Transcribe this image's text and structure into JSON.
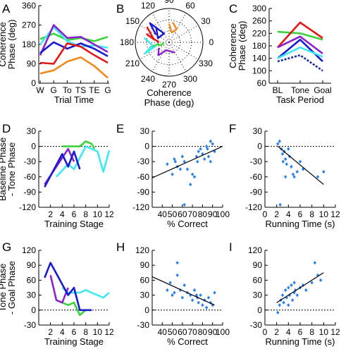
{
  "colors": {
    "green": "#3ad43a",
    "cyan": "#40e8f0",
    "red": "#e01818",
    "orange": "#f08a1e",
    "purple": "#8a22cc",
    "blue": "#1a1ad0",
    "navy": "#1a2a9a",
    "scatter": "#2a80e8"
  },
  "chart_data": [
    {
      "panel": "A",
      "type": "line",
      "ylabel": [
        "Coherence",
        "Phase (deg)"
      ],
      "xlabel": "Trial Time",
      "categories": [
        "W",
        "G",
        "To",
        "TS",
        "TE",
        "G"
      ],
      "ylim": [
        0,
        360
      ],
      "yticks": [
        0,
        90,
        180,
        270,
        360
      ],
      "series": [
        {
          "color": "green",
          "values": [
            205,
            230,
            200,
            210,
            195,
            215
          ]
        },
        {
          "color": "cyan",
          "values": [
            180,
            260,
            195,
            170,
            175,
            165
          ]
        },
        {
          "color": "purple",
          "values": [
            130,
            270,
            210,
            215,
            180,
            145
          ]
        },
        {
          "color": "blue",
          "values": [
            140,
            190,
            160,
            185,
            160,
            125
          ]
        },
        {
          "color": "red",
          "values": [
            95,
            90,
            185,
            170,
            130,
            95
          ]
        },
        {
          "color": "orange",
          "values": [
            45,
            60,
            100,
            120,
            80,
            25
          ]
        }
      ]
    },
    {
      "panel": "B",
      "type": "polar",
      "xlabel": [
        "Coherence",
        "Phase (deg)"
      ],
      "angle_labels": [
        "0",
        "30",
        "60",
        "90",
        "120",
        "150",
        "180",
        "210",
        "240",
        "270",
        "300",
        "330"
      ],
      "series": [
        {
          "color": "green",
          "points": [
            [
              195,
              0.6
            ],
            [
              190,
              0.35
            ],
            [
              200,
              0.25
            ],
            [
              185,
              0.15
            ]
          ]
        },
        {
          "color": "cyan",
          "points": [
            [
              170,
              0.75
            ],
            [
              190,
              0.5
            ],
            [
              205,
              0.8
            ],
            [
              195,
              0.4
            ]
          ]
        },
        {
          "color": "red",
          "points": [
            [
              145,
              0.8
            ],
            [
              170,
              0.45
            ],
            [
              160,
              0.7
            ],
            [
              180,
              0.3
            ]
          ]
        },
        {
          "color": "orange",
          "points": [
            [
              80,
              0.6
            ],
            [
              60,
              0.45
            ],
            [
              75,
              0.3
            ],
            [
              90,
              0.55
            ]
          ]
        },
        {
          "color": "purple",
          "points": [
            [
              210,
              0.35
            ],
            [
              230,
              0.5
            ],
            [
              250,
              0.25
            ],
            [
              300,
              0.35
            ]
          ]
        },
        {
          "color": "blue",
          "points": [
            [
              130,
              0.6
            ],
            [
              160,
              0.35
            ],
            [
              120,
              0.3
            ],
            [
              135,
              0.8
            ],
            [
              150,
              0.45
            ]
          ]
        }
      ]
    },
    {
      "panel": "C",
      "type": "line",
      "ylabel": [
        "Coherence",
        "Phase (deg)"
      ],
      "xlabel": "Task Period",
      "categories": [
        "BL",
        "Tone",
        "Goal"
      ],
      "ylim": [
        60,
        300
      ],
      "yticks": [
        60,
        100,
        140,
        180,
        220,
        260,
        300
      ],
      "series": [
        {
          "color": "green",
          "values": [
            225,
            220,
            200
          ]
        },
        {
          "color": "red",
          "values": [
            175,
            255,
            205
          ]
        },
        {
          "color": "purple",
          "values": [
            175,
            210,
            155
          ]
        },
        {
          "color": "blue",
          "values": [
            140,
            200,
            130
          ]
        },
        {
          "color": "cyan",
          "values": [
            140,
            175,
            145
          ]
        },
        {
          "color": "navy",
          "dashed": true,
          "values": [
            130,
            150,
            100
          ]
        }
      ]
    },
    {
      "panel": "D",
      "type": "line",
      "ylabel": [
        "Baseline Phase",
        "- Tone Phase"
      ],
      "xlabel": "Training Stage",
      "xlim": [
        0,
        12
      ],
      "xticks": [
        2,
        4,
        6,
        8,
        10,
        12
      ],
      "ylim": [
        -120,
        30
      ],
      "yticks": [
        -120,
        -90,
        -60,
        -30,
        0,
        30
      ],
      "series": [
        {
          "color": "green",
          "points": [
            [
              4,
              0
            ],
            [
              7,
              0
            ],
            [
              8,
              10
            ],
            [
              9,
              5
            ],
            [
              9.5,
              -5
            ]
          ]
        },
        {
          "color": "cyan",
          "points": [
            [
              3,
              -60
            ],
            [
              5,
              -35
            ],
            [
              6,
              -45
            ],
            [
              8,
              0
            ],
            [
              10,
              -10
            ],
            [
              11,
              -50
            ],
            [
              12,
              -8
            ]
          ]
        },
        {
          "color": "purple",
          "points": [
            [
              1,
              -75
            ],
            [
              3,
              -40
            ],
            [
              5,
              -5
            ],
            [
              6,
              -30
            ]
          ]
        },
        {
          "color": "blue",
          "points": [
            [
              1,
              -80
            ],
            [
              4,
              -15
            ],
            [
              5,
              -40
            ],
            [
              6,
              -10
            ],
            [
              7,
              -45
            ]
          ]
        }
      ]
    },
    {
      "panel": "E",
      "type": "scatter",
      "xlabel": "% Correct",
      "xlim": [
        30,
        100
      ],
      "xticks": [
        40,
        50,
        60,
        70,
        80,
        90,
        100
      ],
      "ylim": [
        -120,
        30
      ],
      "yticks": [
        -120,
        -90,
        -60,
        -30,
        0,
        30
      ],
      "trend": [
        [
          30,
          -62
        ],
        [
          100,
          0
        ]
      ],
      "points": [
        [
          45,
          -35
        ],
        [
          50,
          -55
        ],
        [
          52,
          -25
        ],
        [
          53,
          -30
        ],
        [
          55,
          -40
        ],
        [
          58,
          -45
        ],
        [
          60,
          -20
        ],
        [
          62,
          -30
        ],
        [
          65,
          -45
        ],
        [
          68,
          -75
        ],
        [
          70,
          -55
        ],
        [
          72,
          -60
        ],
        [
          74,
          -20
        ],
        [
          75,
          -30
        ],
        [
          76,
          -10
        ],
        [
          78,
          -5
        ],
        [
          80,
          -15
        ],
        [
          82,
          -25
        ],
        [
          84,
          0
        ],
        [
          85,
          -5
        ],
        [
          86,
          -20
        ],
        [
          88,
          10
        ],
        [
          88,
          -30
        ],
        [
          90,
          5
        ],
        [
          92,
          -10
        ],
        [
          62,
          -115
        ]
      ]
    },
    {
      "panel": "F",
      "type": "scatter",
      "xlabel": "Running Time (s)",
      "xlim": [
        0,
        12
      ],
      "xticks": [
        0,
        2,
        4,
        6,
        8,
        10,
        12
      ],
      "ylim": [
        -120,
        30
      ],
      "yticks": [
        -120,
        -90,
        -60,
        -30,
        0,
        30
      ],
      "trend": [
        [
          2.2,
          0
        ],
        [
          10,
          -75
        ]
      ],
      "points": [
        [
          2.2,
          5
        ],
        [
          2.5,
          10
        ],
        [
          2.8,
          -5
        ],
        [
          3,
          -15
        ],
        [
          3.1,
          -30
        ],
        [
          3.3,
          -10
        ],
        [
          3.5,
          -25
        ],
        [
          3.7,
          -35
        ],
        [
          4,
          -5
        ],
        [
          4.2,
          -20
        ],
        [
          4.5,
          -40
        ],
        [
          4.8,
          -55
        ],
        [
          5,
          -60
        ],
        [
          5.5,
          -50
        ],
        [
          6,
          -30
        ],
        [
          6.5,
          -45
        ],
        [
          9,
          -60
        ],
        [
          10,
          -50
        ],
        [
          2.6,
          -115
        ],
        [
          3.5,
          -60
        ]
      ]
    },
    {
      "panel": "G",
      "type": "line",
      "ylabel": [
        "Tone Phase",
        "- Goal Phase"
      ],
      "xlabel": "Training Stage",
      "xlim": [
        0,
        12
      ],
      "xticks": [
        2,
        4,
        6,
        8,
        10,
        12
      ],
      "ylim": [
        -30,
        120
      ],
      "yticks": [
        -30,
        0,
        30,
        60,
        90,
        120
      ],
      "series": [
        {
          "color": "cyan",
          "points": [
            [
              4,
              45
            ],
            [
              5,
              35
            ],
            [
              7,
              35
            ],
            [
              8,
              40
            ],
            [
              10,
              30
            ],
            [
              11,
              25
            ],
            [
              12,
              35
            ]
          ]
        },
        {
          "color": "green",
          "points": [
            [
              3,
              20
            ],
            [
              5,
              10
            ],
            [
              6,
              15
            ],
            [
              7,
              -10
            ],
            [
              8,
              0
            ],
            [
              9,
              0
            ]
          ]
        },
        {
          "color": "purple",
          "points": [
            [
              2,
              70
            ],
            [
              3,
              20
            ],
            [
              4,
              15
            ],
            [
              5,
              45
            ]
          ]
        },
        {
          "color": "blue",
          "points": [
            [
              1,
              65
            ],
            [
              2,
              95
            ],
            [
              5,
              30
            ],
            [
              6,
              45
            ],
            [
              7,
              0
            ],
            [
              9,
              0
            ]
          ]
        }
      ]
    },
    {
      "panel": "H",
      "type": "scatter",
      "xlabel": "% Correct",
      "xlim": [
        30,
        100
      ],
      "xticks": [
        40,
        50,
        60,
        70,
        80,
        90,
        100
      ],
      "ylim": [
        -30,
        120
      ],
      "yticks": [
        -30,
        0,
        30,
        60,
        90,
        120
      ],
      "trend": [
        [
          30,
          67
        ],
        [
          92,
          10
        ]
      ],
      "points": [
        [
          45,
          40
        ],
        [
          48,
          55
        ],
        [
          50,
          30
        ],
        [
          52,
          35
        ],
        [
          55,
          70
        ],
        [
          58,
          40
        ],
        [
          60,
          25
        ],
        [
          62,
          50
        ],
        [
          65,
          35
        ],
        [
          68,
          30
        ],
        [
          70,
          20
        ],
        [
          72,
          40
        ],
        [
          74,
          30
        ],
        [
          75,
          25
        ],
        [
          76,
          15
        ],
        [
          78,
          30
        ],
        [
          80,
          10
        ],
        [
          82,
          20
        ],
        [
          84,
          5
        ],
        [
          86,
          25
        ],
        [
          88,
          15
        ],
        [
          90,
          10
        ],
        [
          92,
          35
        ],
        [
          55,
          95
        ]
      ]
    },
    {
      "panel": "I",
      "type": "scatter",
      "xlabel": "Running Time (s)",
      "xlim": [
        0,
        12
      ],
      "xticks": [
        0,
        2,
        4,
        6,
        8,
        10,
        12
      ],
      "ylim": [
        -30,
        120
      ],
      "yticks": [
        -30,
        0,
        30,
        60,
        90,
        120
      ],
      "trend": [
        [
          2,
          15
        ],
        [
          10,
          75
        ]
      ],
      "points": [
        [
          2.2,
          -5
        ],
        [
          2.5,
          10
        ],
        [
          2.7,
          20
        ],
        [
          3,
          30
        ],
        [
          3.2,
          15
        ],
        [
          3.5,
          40
        ],
        [
          3.7,
          25
        ],
        [
          4,
          45
        ],
        [
          4.2,
          30
        ],
        [
          4.5,
          50
        ],
        [
          4.7,
          20
        ],
        [
          5,
          35
        ],
        [
          5.2,
          40
        ],
        [
          5.5,
          30
        ],
        [
          6,
          45
        ],
        [
          6.5,
          50
        ],
        [
          7,
          40
        ],
        [
          8,
          55
        ],
        [
          9,
          70
        ],
        [
          9.5,
          60
        ],
        [
          4,
          10
        ],
        [
          5,
          55
        ],
        [
          8.5,
          95
        ]
      ]
    }
  ]
}
